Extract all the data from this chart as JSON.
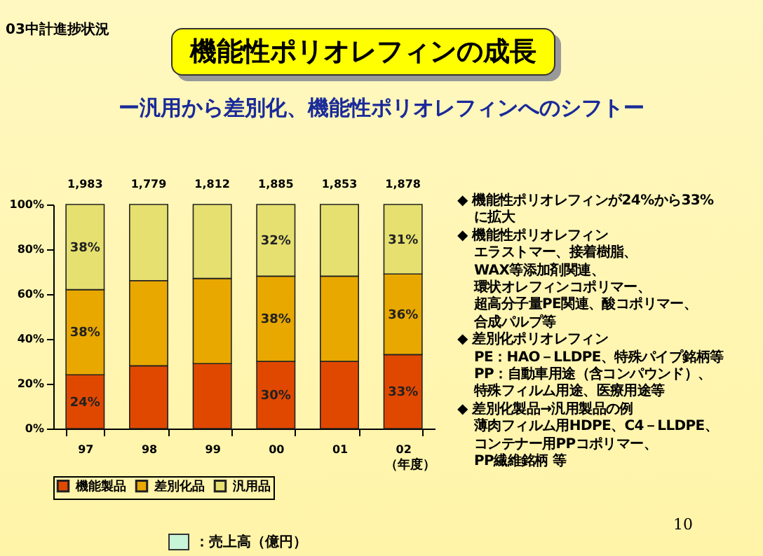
{
  "chart_data": {
    "type": "bar",
    "title": "機能性ポリオレフィンの成長",
    "subtitle": "ー汎用から差別化、機能性ポリオレフィンへのシフトー",
    "xlabel": "（年度）",
    "categories": [
      "97",
      "98",
      "99",
      "00",
      "01",
      "02"
    ],
    "stacked": true,
    "series": [
      {
        "name": "機能製品",
        "color": "#e04800",
        "values": [
          24,
          28,
          29,
          30,
          30,
          33
        ],
        "value_labels": [
          "24%",
          null,
          null,
          "30%",
          null,
          "33%"
        ]
      },
      {
        "name": "差別化品",
        "color": "#e8a800",
        "values": [
          38,
          38,
          38,
          38,
          38,
          36
        ],
        "value_labels": [
          "38%",
          null,
          null,
          "38%",
          null,
          "36%"
        ]
      },
      {
        "name": "汎用品",
        "color": "#e6e070",
        "values": [
          38,
          34,
          33,
          32,
          32,
          31
        ],
        "value_labels": [
          "38%",
          null,
          null,
          "32%",
          null,
          "31%"
        ]
      }
    ],
    "ylim": [
      0,
      100
    ],
    "yticks": [
      {
        "value": 0,
        "label": "0%"
      },
      {
        "value": 20,
        "label": "20%"
      },
      {
        "value": 40,
        "label": "40%"
      },
      {
        "value": 60,
        "label": "60%"
      },
      {
        "value": 80,
        "label": "80%"
      },
      {
        "value": 100,
        "label": "100%"
      }
    ],
    "legend": "bottom",
    "annotations": [
      "03中計進捗状況",
      "◆ 機能性ポリオレフィンが24%から33%",
      "に拡大",
      "◆ 機能性ポリオレフィン",
      "エラストマー、接着樹脂、",
      "WAX等添加剤関連、",
      "環状オレフィンコポリマー、",
      "超高分子量PE関連、酸コポリマー、",
      "合成パルプ等",
      "◆ 差別化ポリオレフィン",
      "PE：HAO－LLDPE、特殊パイプ銘柄等",
      "PP：自動車用途（含コンパウンド）、",
      "特殊フィルム用途、医療用途等",
      "◆ 差別化製品→汎用製品の例",
      "薄肉フィルム用HDPE、C4－LLDPE、",
      "コンテナー用PPコポリマー、",
      "PP繊維銘柄 等",
      "1,983",
      "1,779",
      "1,812",
      "1,885",
      "1,853",
      "1,878",
      "：売上高（億円）",
      "10"
    ]
  }
}
